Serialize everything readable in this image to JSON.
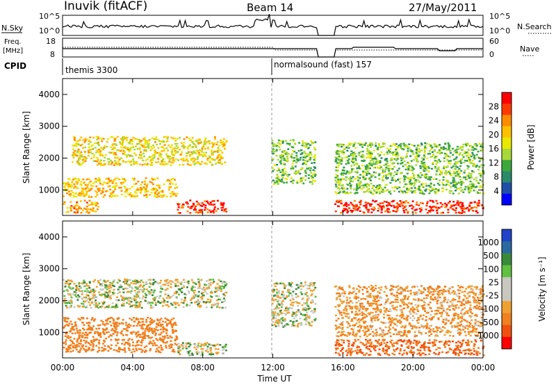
{
  "header": {
    "station": "Inuvik (fitACF)",
    "beam": "Beam 14",
    "date": "27/May/2011"
  },
  "panels": {
    "nsky_label": "N.Sky",
    "nsearch_label": "N.Search",
    "freq_label_1": "Freq.",
    "freq_label_2": "[MHz]",
    "nave_label": "Nave",
    "cpid_label": "CPID",
    "noise_ticks_left": [
      "10^5",
      "10^0"
    ],
    "noise_ticks_right": [
      "10^5",
      "10^0"
    ],
    "freq_ticks": [
      "18",
      "8"
    ],
    "nave_ticks": [
      "60",
      "0"
    ],
    "cpid_segments": [
      "themis 3300",
      "normalsound (fast) 157"
    ]
  },
  "power_panel": {
    "ylabel": "Slant Range [km]",
    "yticks": [
      "4000",
      "3000",
      "2000",
      "1000"
    ],
    "colorbar_label": "Power [dB]",
    "colorbar_ticks": [
      "28",
      "24",
      "20",
      "16",
      "12",
      "8",
      "4"
    ],
    "colorbar_colors": [
      "#ff0000",
      "#ff3a00",
      "#ff8c00",
      "#ffc000",
      "#e8e800",
      "#a8d838",
      "#3ca83c",
      "#2a8a6a",
      "#1f4fa8",
      "#0000ff"
    ]
  },
  "velocity_panel": {
    "ylabel": "Slant Range [km]",
    "yticks": [
      "4000",
      "3000",
      "2000",
      "1000"
    ],
    "colorbar_label": "Velocity  [m s⁻¹]",
    "colorbar_ticks": [
      "1000",
      "500",
      "100",
      "25",
      "-25",
      "-100",
      "-500",
      "-1000"
    ],
    "colorbar_colors": [
      "#2244c8",
      "#2a6aa0",
      "#3a8a3a",
      "#60c040",
      "#c8c8c0",
      "#c8c8c0",
      "#f0a030",
      "#f08020",
      "#f05010",
      "#ff0000"
    ]
  },
  "x_axis": {
    "label": "Time UT",
    "ticks": [
      "00:00",
      "04:00",
      "08:00",
      "12:00",
      "16:00",
      "20:00",
      "00:00"
    ]
  },
  "chart_data": [
    {
      "type": "heatmap",
      "title": "Inuvik (fitACF) Beam 14 27/May/2011",
      "quantity": "Power",
      "xlabel": "Time UT",
      "ylabel": "Slant Range [km]",
      "x_ticks": [
        "00:00",
        "04:00",
        "08:00",
        "12:00",
        "16:00",
        "20:00",
        "00:00"
      ],
      "xlim_hours": [
        0,
        24
      ],
      "ylim_km": [
        200,
        4500
      ],
      "colorbar": {
        "label": "Power [dB]",
        "ticks": [
          4,
          8,
          12,
          16,
          20,
          24,
          28
        ],
        "range": [
          0,
          30
        ]
      },
      "data_gap_hours": [
        14.5,
        15.5
      ],
      "approx_echo_regions": [
        {
          "t": [
            0.0,
            2.0
          ],
          "range_km": [
            300,
            700
          ],
          "value_db": 22
        },
        {
          "t": [
            0.5,
            9.3
          ],
          "range_km": [
            1800,
            2700
          ],
          "value_db": 18
        },
        {
          "t": [
            0.0,
            6.5
          ],
          "range_km": [
            800,
            1400
          ],
          "value_db": 20
        },
        {
          "t": [
            6.5,
            9.3
          ],
          "range_km": [
            300,
            700
          ],
          "value_db": 28
        },
        {
          "t": [
            11.9,
            14.4
          ],
          "range_km": [
            1200,
            2600
          ],
          "value_db": 12
        },
        {
          "t": [
            15.5,
            24.0
          ],
          "range_km": [
            300,
            700
          ],
          "value_db": 28
        },
        {
          "t": [
            15.5,
            24.0
          ],
          "range_km": [
            900,
            2500
          ],
          "value_db": 12
        }
      ]
    },
    {
      "type": "heatmap",
      "title": "Inuvik (fitACF) Beam 14 27/May/2011",
      "quantity": "Velocity",
      "xlabel": "Time UT",
      "ylabel": "Slant Range [km]",
      "x_ticks": [
        "00:00",
        "04:00",
        "08:00",
        "12:00",
        "16:00",
        "20:00",
        "00:00"
      ],
      "xlim_hours": [
        0,
        24
      ],
      "ylim_km": [
        200,
        4500
      ],
      "colorbar": {
        "label": "Velocity [m s⁻¹]",
        "ticks": [
          1000,
          500,
          100,
          25,
          -25,
          -100,
          -500,
          -1000
        ]
      },
      "data_gap_hours": [
        14.5,
        15.5
      ],
      "approx_echo_regions": [
        {
          "t": [
            0.0,
            9.3
          ],
          "range_km": [
            1800,
            2700
          ],
          "value_ms": 0
        },
        {
          "t": [
            0.0,
            6.5
          ],
          "range_km": [
            400,
            1500
          ],
          "value_ms": -300
        },
        {
          "t": [
            6.5,
            9.3
          ],
          "range_km": [
            300,
            700
          ],
          "value_ms": 0
        },
        {
          "t": [
            11.9,
            14.4
          ],
          "range_km": [
            1200,
            2600
          ],
          "value_ms": 0
        },
        {
          "t": [
            15.5,
            24.0
          ],
          "range_km": [
            300,
            800
          ],
          "value_ms": -400
        },
        {
          "t": [
            15.5,
            24.0
          ],
          "range_km": [
            900,
            2500
          ],
          "value_ms": -100
        }
      ]
    }
  ]
}
